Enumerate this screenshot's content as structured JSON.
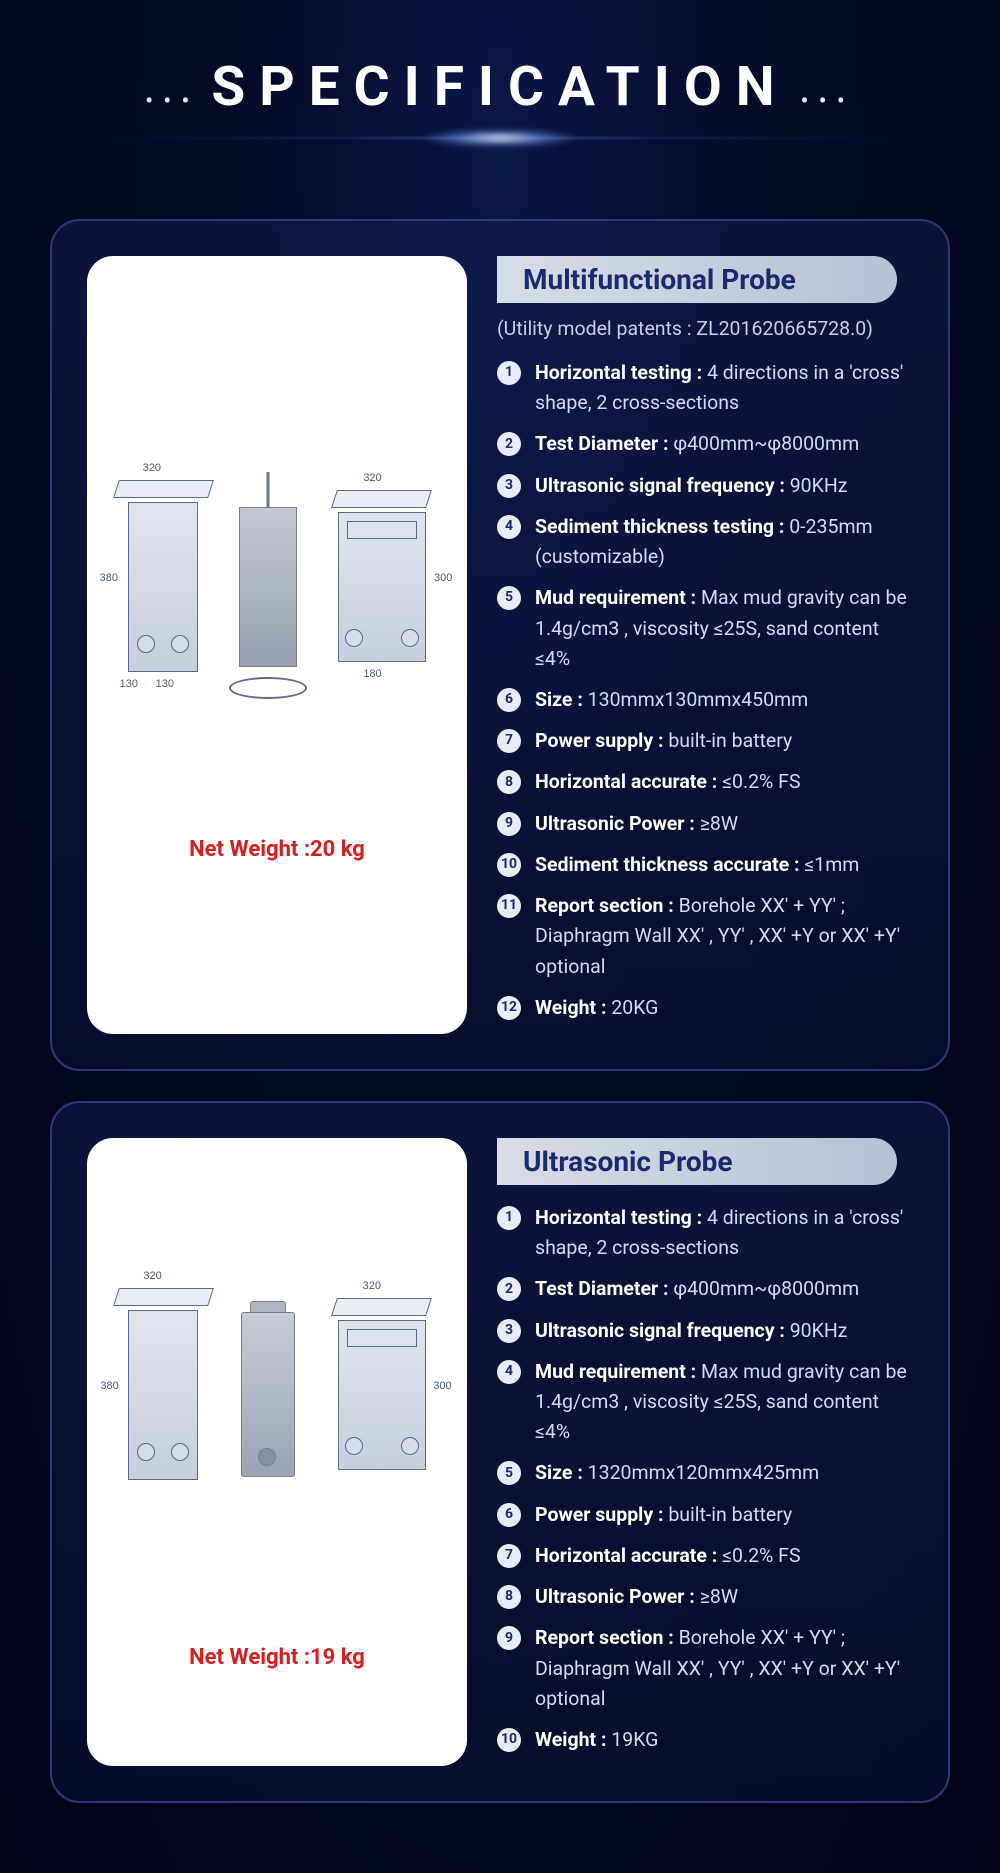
{
  "header": {
    "title": "SPECIFICATION"
  },
  "cards": [
    {
      "title": "Multifunctional Probe",
      "subtitle": "(Utility model patents : ZL201620665728.0)",
      "img": {
        "dim_left_w": "320",
        "dim_left_h": "380",
        "dim_left_base1": "130",
        "dim_left_base2": "130",
        "dim_right_w": "320",
        "dim_right_h": "300",
        "dim_right_base": "180",
        "net_weight": "Net Weight :20 kg"
      },
      "specs": [
        {
          "n": "1",
          "label": "Horizontal testing :",
          "value": " 4 directions in a 'cross' shape, 2 cross-sections"
        },
        {
          "n": "2",
          "label": "Test Diameter :",
          "value": " φ400mm~φ8000mm"
        },
        {
          "n": "3",
          "label": "Ultrasonic signal frequency :",
          "value": " 90KHz"
        },
        {
          "n": "4",
          "label": "Sediment thickness testing :",
          "value": " 0-235mm (customizable)"
        },
        {
          "n": "5",
          "label": "Mud requirement :",
          "value": " Max mud gravity can be 1.4g/cm3 , viscosity ≤25S, sand content ≤4%"
        },
        {
          "n": "6",
          "label": "Size :",
          "value": " 130mmx130mmx450mm"
        },
        {
          "n": "7",
          "label": "Power supply :",
          "value": " built-in battery"
        },
        {
          "n": "8",
          "label": "Horizontal accurate :",
          "value": " ≤0.2% FS"
        },
        {
          "n": "9",
          "label": "Ultrasonic Power :",
          "value": " ≥8W"
        },
        {
          "n": "10",
          "label": "Sediment thickness accurate :",
          "value": " ≤1mm"
        },
        {
          "n": "11",
          "label": "Report section :",
          "value": " Borehole XX' + YY' ; Diaphragm Wall XX' , YY' , XX' +Y or XX' +Y' optional"
        },
        {
          "n": "12",
          "label": "Weight :",
          "value": " 20KG"
        }
      ]
    },
    {
      "title": "Ultrasonic Probe",
      "subtitle": "",
      "img": {
        "dim_left_w": "320",
        "dim_left_h": "380",
        "dim_right_w": "320",
        "dim_right_h": "300",
        "net_weight": "Net Weight :19 kg"
      },
      "specs": [
        {
          "n": "1",
          "label": "Horizontal testing :",
          "value": " 4 directions in a 'cross' shape, 2 cross-sections"
        },
        {
          "n": "2",
          "label": "Test Diameter :",
          "value": " φ400mm~φ8000mm"
        },
        {
          "n": "3",
          "label": "Ultrasonic signal frequency :",
          "value": " 90KHz"
        },
        {
          "n": "4",
          "label": "Mud requirement :",
          "value": " Max mud gravity can be 1.4g/cm3 , viscosity ≤25S, sand content ≤4%"
        },
        {
          "n": "5",
          "label": "Size :",
          "value": " 1320mmx120mmx425mm"
        },
        {
          "n": "6",
          "label": "Power supply :",
          "value": " built-in battery"
        },
        {
          "n": "7",
          "label": "Horizontal accurate :",
          "value": " ≤0.2% FS"
        },
        {
          "n": "8",
          "label": "Ultrasonic Power :",
          "value": " ≥8W"
        },
        {
          "n": "9",
          "label": "Report section :",
          "value": " Borehole XX' + YY' ; Diaphragm Wall XX' , YY' , XX' +Y or XX' +Y' optional"
        },
        {
          "n": "10",
          "label": "Weight :",
          "value": " 19KG"
        }
      ]
    }
  ]
}
